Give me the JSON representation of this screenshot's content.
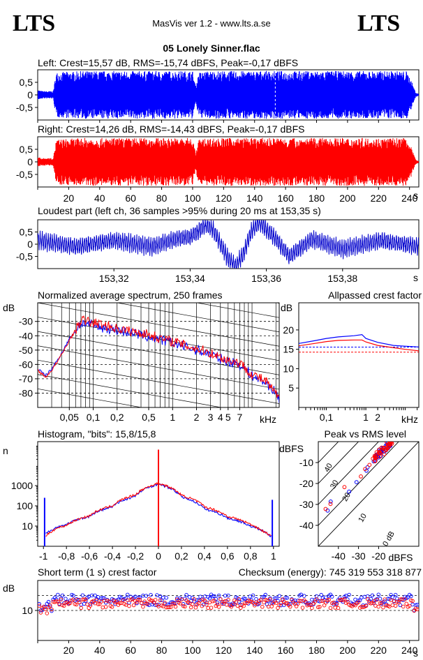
{
  "header": {
    "logo_left": "LTS",
    "logo_right": "LTS",
    "app_title": "MasVis ver 1.2 - www.lts.a.se",
    "file_name": "05 Lonely Sinner.flac"
  },
  "chart_data": [
    {
      "id": "waveform-left",
      "type": "area",
      "title": "Left: Crest=15,57 dB, RMS=-15,74 dBFS, Peak=-0,17 dBFS",
      "y_ticks": [
        "0,5",
        "0",
        "-0,5"
      ],
      "y_tick_values": [
        0.5,
        0,
        -0.5
      ],
      "ylim": [
        -1,
        1
      ],
      "xlim": [
        0,
        246
      ],
      "color": "#0000ff",
      "envelope": {
        "x": [
          0,
          3,
          10,
          12,
          30,
          60,
          100,
          102,
          104,
          110,
          150,
          190,
          200,
          230,
          238,
          241,
          244,
          246
        ],
        "amplitude": [
          0.2,
          0.15,
          0.15,
          0.9,
          0.95,
          0.95,
          0.95,
          0.35,
          0.9,
          0.95,
          0.95,
          0.95,
          0.95,
          0.95,
          0.95,
          0.6,
          0.1,
          0.03
        ]
      }
    },
    {
      "id": "waveform-right",
      "type": "area",
      "title": "Right: Crest=14,26 dB, RMS=-14,43 dBFS, Peak=-0,17 dBFS",
      "y_ticks": [
        "0,5",
        "0",
        "-0,5"
      ],
      "y_tick_values": [
        0.5,
        0,
        -0.5
      ],
      "ylim": [
        -1,
        1
      ],
      "xlim": [
        0,
        246
      ],
      "x_ticks": [
        "20",
        "40",
        "60",
        "80",
        "100",
        "120",
        "140",
        "160",
        "180",
        "200",
        "220",
        "240"
      ],
      "x_tick_values": [
        20,
        40,
        60,
        80,
        100,
        120,
        140,
        160,
        180,
        200,
        220,
        240
      ],
      "x_unit": "s",
      "color": "#ff0000",
      "envelope": {
        "x": [
          0,
          3,
          10,
          12,
          30,
          60,
          100,
          102,
          104,
          110,
          150,
          190,
          200,
          230,
          238,
          241,
          244,
          246
        ],
        "amplitude": [
          0.2,
          0.15,
          0.15,
          0.9,
          0.95,
          0.95,
          0.95,
          0.35,
          0.9,
          0.95,
          0.95,
          0.95,
          0.95,
          0.95,
          0.95,
          0.6,
          0.1,
          0.03
        ]
      }
    },
    {
      "id": "loudest-part",
      "type": "line",
      "title": "Loudest part (left  ch, 36 samples >95% during 20 ms at 153,35 s)",
      "y_ticks": [
        "0,5",
        "0",
        "-0,5"
      ],
      "y_tick_values": [
        0.5,
        0,
        -0.5
      ],
      "ylim": [
        -1,
        1
      ],
      "xlim": [
        153.3,
        153.4
      ],
      "x_ticks": [
        "153,32",
        "153,34",
        "153,36",
        "153,38"
      ],
      "x_tick_values": [
        153.32,
        153.34,
        153.36,
        153.38
      ],
      "x_unit": "s",
      "color": "#0000cc",
      "x": [
        153.3,
        153.31,
        153.32,
        153.33,
        153.336,
        153.34,
        153.342,
        153.344,
        153.346,
        153.348,
        153.35,
        153.352,
        153.354,
        153.356,
        153.358,
        153.362,
        153.366,
        153.372,
        153.38,
        153.39,
        153.4
      ],
      "values": [
        0.15,
        -0.1,
        0.15,
        -0.1,
        0.2,
        0.3,
        0.5,
        0.8,
        0.6,
        0.0,
        -0.6,
        -0.9,
        -0.4,
        0.5,
        0.9,
        0.3,
        -0.5,
        0.2,
        -0.2,
        0.15,
        -0.1
      ]
    },
    {
      "id": "average-spectrum",
      "type": "line",
      "title": "Normalized average spectrum, 250 frames",
      "ylabel": "dB",
      "y_ticks": [
        "-30",
        "-40",
        "-50",
        "-60",
        "-70",
        "-80"
      ],
      "y_tick_values": [
        -30,
        -40,
        -50,
        -60,
        -70,
        -80
      ],
      "ylim": [
        -90,
        -17
      ],
      "x_scale": "log",
      "xlim": [
        0.02,
        22
      ],
      "x_ticks": [
        "0,05",
        "0,1",
        "0,2",
        "0,5",
        "1",
        "2",
        "3",
        "4",
        "5",
        "7"
      ],
      "x_tick_values": [
        0.05,
        0.1,
        0.2,
        0.5,
        1,
        2,
        3,
        4,
        5,
        7
      ],
      "x_unit": "kHz",
      "series": [
        {
          "color": "#0000ff",
          "x": [
            0.02,
            0.025,
            0.03,
            0.04,
            0.05,
            0.07,
            0.1,
            0.15,
            0.2,
            0.3,
            0.5,
            0.7,
            1,
            1.5,
            2,
            3,
            4,
            5,
            7,
            10,
            15,
            20,
            22
          ],
          "values": [
            -63,
            -68,
            -63,
            -52,
            -42,
            -31,
            -33,
            -35,
            -36,
            -38,
            -41,
            -43,
            -45,
            -48,
            -50,
            -53,
            -56,
            -58,
            -60,
            -68,
            -73,
            -80,
            -84
          ]
        },
        {
          "color": "#ff0000",
          "x": [
            0.02,
            0.025,
            0.03,
            0.04,
            0.05,
            0.07,
            0.1,
            0.15,
            0.2,
            0.3,
            0.5,
            0.7,
            1,
            1.5,
            2,
            3,
            4,
            5,
            7,
            10,
            15,
            20,
            22
          ],
          "values": [
            -64,
            -69,
            -64,
            -53,
            -43,
            -29,
            -31,
            -33,
            -35,
            -37,
            -39,
            -42,
            -44,
            -47,
            -49,
            -52,
            -55,
            -57,
            -59,
            -67,
            -72,
            -81,
            -83
          ]
        }
      ]
    },
    {
      "id": "allpassed-crest",
      "type": "line",
      "title": "Allpassed crest factor",
      "ylabel": "dB",
      "y_ticks": [
        "20",
        "15",
        "10",
        "5"
      ],
      "y_tick_values": [
        20,
        15,
        10,
        5
      ],
      "ylim": [
        0,
        27
      ],
      "x_scale": "log",
      "xlim": [
        0.02,
        22
      ],
      "x_ticks": [
        "0,1",
        "1",
        "2"
      ],
      "x_tick_values": [
        0.1,
        1,
        2
      ],
      "x_unit": "kHz",
      "series": [
        {
          "color": "#0000ff",
          "x": [
            0.02,
            0.05,
            0.1,
            0.2,
            0.5,
            0.8,
            1,
            2,
            5,
            10,
            22
          ],
          "values": [
            16.5,
            17.2,
            17.8,
            18.2,
            18.5,
            18.8,
            17.8,
            16.8,
            16.0,
            15.8,
            15.6
          ]
        },
        {
          "color": "#ff0000",
          "x": [
            0.02,
            0.05,
            0.1,
            0.2,
            0.5,
            0.8,
            1,
            2,
            5,
            10,
            22
          ],
          "values": [
            15.9,
            16.5,
            17.0,
            17.3,
            17.4,
            17.4,
            16.9,
            16.0,
            15.4,
            15.0,
            14.6
          ]
        }
      ],
      "reference_lines": [
        {
          "color": "#0000ff",
          "value": 15.57
        },
        {
          "color": "#ff0000",
          "value": 14.26
        }
      ]
    },
    {
      "id": "histogram",
      "type": "line",
      "title": "Histogram, \"bits\": 15,8/15,8",
      "ylabel": "n",
      "y_scale": "log",
      "y_ticks": [
        "10",
        "100",
        "1000"
      ],
      "y_tick_values": [
        10,
        100,
        1000
      ],
      "ylim": [
        1,
        150000
      ],
      "xlim": [
        -1.05,
        1.05
      ],
      "x_ticks": [
        "-1",
        "-0,8",
        "-0,6",
        "-0,4",
        "-0,2",
        "0",
        "0,2",
        "0,4",
        "0,6",
        "0,8",
        "1"
      ],
      "x_tick_values": [
        -1,
        -0.8,
        -0.6,
        -0.4,
        -0.2,
        0,
        0.2,
        0.4,
        0.6,
        0.8,
        1
      ],
      "series": [
        {
          "color": "#0000ff",
          "x": [
            -0.98,
            -0.9,
            -0.8,
            -0.6,
            -0.4,
            -0.2,
            0,
            0.2,
            0.4,
            0.6,
            0.8,
            0.9,
            0.98
          ],
          "values": [
            4,
            8,
            12,
            30,
            90,
            300,
            1200,
            280,
            70,
            25,
            10,
            6,
            3
          ]
        },
        {
          "color": "#ff0000",
          "x": [
            -0.98,
            -0.9,
            -0.8,
            -0.6,
            -0.4,
            -0.2,
            0,
            0.2,
            0.4,
            0.6,
            0.8,
            0.9,
            0.98
          ],
          "values": [
            3,
            7,
            11,
            32,
            100,
            350,
            1300,
            330,
            90,
            30,
            12,
            6,
            3
          ]
        }
      ],
      "spikes": [
        {
          "color": "#0000ff",
          "x": -0.99,
          "value": 250
        },
        {
          "color": "#0000ff",
          "x": 0.99,
          "value": 200
        },
        {
          "color": "#ff0000",
          "x": 0,
          "value": 60000
        }
      ]
    },
    {
      "id": "peak-vs-rms",
      "type": "scatter",
      "title": "Peak vs RMS level",
      "ylabel": "dBFS",
      "xlabel": "dBFS",
      "y_ticks": [
        "-10",
        "-20",
        "-30",
        "-40"
      ],
      "y_tick_values": [
        -10,
        -20,
        -30,
        -40
      ],
      "ylim": [
        -50,
        0
      ],
      "x_ticks": [
        "-40",
        "-30",
        "-20"
      ],
      "x_tick_values": [
        -40,
        -30,
        -20
      ],
      "xlim": [
        -50,
        0
      ],
      "diagonals": [
        {
          "label": "0 dB",
          "offset": 0
        },
        {
          "label": "10",
          "offset": 10
        },
        {
          "label": "20",
          "offset": 20
        },
        {
          "label": "30",
          "offset": 30
        },
        {
          "label": "40",
          "offset": 40
        }
      ],
      "series": [
        {
          "color": "#0000ff",
          "x": [
            -46,
            -43,
            -35,
            -31,
            -27,
            -25,
            -23,
            -22,
            -21,
            -20,
            -19,
            -18,
            -17,
            -16,
            -15,
            -14
          ],
          "values": [
            -32,
            -28,
            -23,
            -19,
            -14,
            -12,
            -10,
            -9,
            -8,
            -7,
            -6,
            -5,
            -4,
            -3,
            -2,
            -1
          ]
        },
        {
          "color": "#ff0000",
          "x": [
            -47,
            -44,
            -37,
            -29,
            -26,
            -24,
            -22,
            -21,
            -20,
            -19,
            -18,
            -17,
            -16,
            -15,
            -14
          ],
          "values": [
            -32,
            -29,
            -22,
            -17,
            -13,
            -11,
            -9,
            -8,
            -7,
            -6,
            -5,
            -4,
            -3,
            -2,
            -1
          ]
        }
      ]
    },
    {
      "id": "short-term-crest",
      "type": "scatter",
      "title": "Short term (1 s) crest factor",
      "checksum": "Checksum (energy):   745 319 553 318 877",
      "ylabel": "dB",
      "y_ticks": [
        "10"
      ],
      "y_tick_values": [
        10
      ],
      "ylim": [
        0,
        20
      ],
      "reference_lines": [
        10,
        15
      ],
      "xlim": [
        0,
        246
      ],
      "x_ticks": [
        "20",
        "40",
        "60",
        "80",
        "100",
        "120",
        "140",
        "160",
        "180",
        "200",
        "220",
        "240"
      ],
      "x_tick_values": [
        20,
        40,
        60,
        80,
        100,
        120,
        140,
        160,
        180,
        200,
        220,
        240
      ],
      "x_unit": "s",
      "series": [
        {
          "color": "#0000ff",
          "mean": 13.5,
          "spread": 1.8
        },
        {
          "color": "#ff0000",
          "mean": 12.3,
          "spread": 1.5
        }
      ]
    }
  ]
}
